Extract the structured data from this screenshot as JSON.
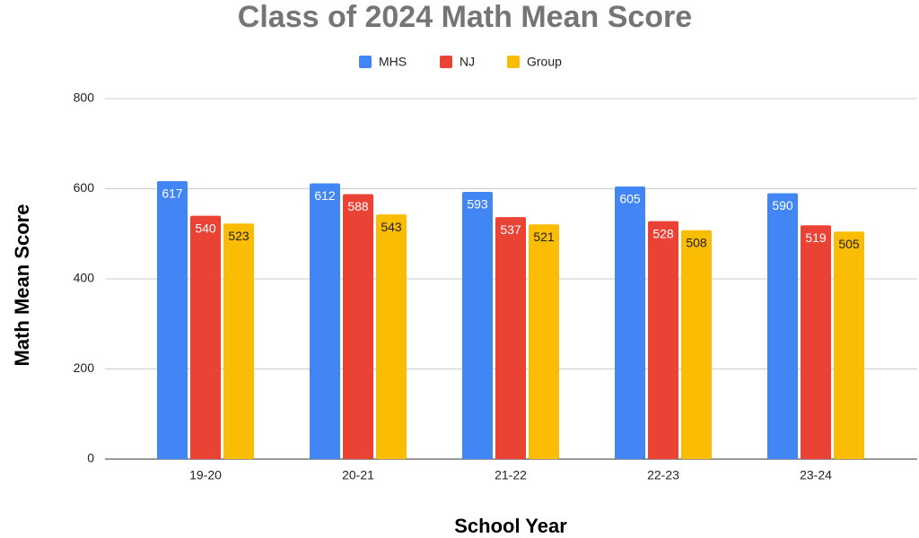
{
  "chart_data": {
    "type": "bar",
    "title": "Class of 2024 Math Mean Score",
    "x_label": "School Year",
    "y_label": "Math Mean Score",
    "categories": [
      "19-20",
      "20-21",
      "21-22",
      "22-23",
      "23-24"
    ],
    "series": [
      {
        "name": "MHS",
        "color": "#4285f4",
        "values": [
          617,
          612,
          593,
          605,
          590
        ]
      },
      {
        "name": "NJ",
        "color": "#ea4335",
        "values": [
          540,
          588,
          537,
          528,
          519
        ]
      },
      {
        "name": "Group",
        "color": "#fbbc04",
        "values": [
          523,
          543,
          521,
          508,
          505
        ]
      }
    ],
    "ylim": [
      0,
      800
    ],
    "yticks": [
      0,
      200,
      400,
      600,
      800
    ],
    "grid": true,
    "legend": "top"
  }
}
